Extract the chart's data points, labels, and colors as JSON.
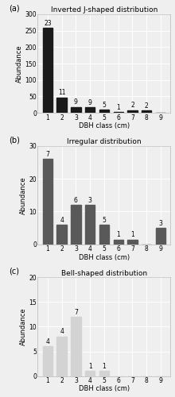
{
  "subplots": [
    {
      "label": "(a)",
      "title": "Inverted J-shaped distribution",
      "xlabel": "DBH class (cm)",
      "ylabel": "Abundance",
      "bar_color": "#1a1a1a",
      "categories": [
        1,
        2,
        3,
        4,
        5,
        6,
        7,
        8,
        9
      ],
      "values": [
        258,
        47,
        18,
        17,
        10,
        2,
        8,
        7,
        0
      ],
      "annotations": [
        23,
        11,
        9,
        9,
        5,
        1,
        2,
        2,
        null
      ],
      "ylim": [
        0,
        300
      ],
      "yticks": [
        0,
        50,
        100,
        150,
        200,
        250,
        300
      ]
    },
    {
      "label": "(b)",
      "title": "Irregular distribution",
      "xlabel": "DBH class (cm)",
      "ylabel": "Abundance",
      "bar_color": "#595959",
      "categories": [
        1,
        2,
        3,
        4,
        5,
        6,
        7,
        8,
        9
      ],
      "values": [
        26,
        6,
        12,
        12,
        6,
        1.5,
        1.5,
        0,
        5
      ],
      "annotations": [
        7,
        4,
        6,
        3,
        5,
        1,
        1,
        null,
        3
      ],
      "ylim": [
        0,
        30
      ],
      "yticks": [
        0,
        10,
        20,
        30
      ]
    },
    {
      "label": "(c)",
      "title": "Bell-shaped distribution",
      "xlabel": "DBH class (cm)",
      "ylabel": "Abundance",
      "bar_color": "#d3d3d3",
      "categories": [
        1,
        2,
        3,
        4,
        5,
        6,
        7,
        8,
        9
      ],
      "values": [
        6,
        8,
        12,
        1,
        1,
        0,
        0,
        0,
        0
      ],
      "annotations": [
        4,
        4,
        7,
        1,
        1,
        null,
        null,
        null,
        null
      ],
      "ylim": [
        0,
        20
      ],
      "yticks": [
        0,
        5,
        10,
        15,
        20
      ]
    }
  ],
  "background_color": "#efefef",
  "fig_width": 2.2,
  "fig_height": 5.0,
  "dpi": 100
}
